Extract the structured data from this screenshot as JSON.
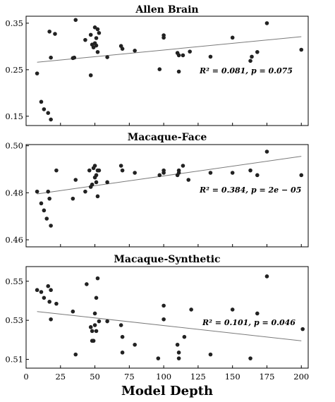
{
  "chart_data": [
    {
      "type": "scatter",
      "title": "Allen Brain",
      "xlim": [
        0,
        205
      ],
      "ylim": [
        0.13,
        0.365
      ],
      "yticks": [
        0.15,
        0.25,
        0.35
      ],
      "ytick_labels": [
        "0.15",
        "0.25",
        "0.35"
      ],
      "x": [
        8,
        11,
        13,
        16,
        17,
        18,
        18,
        21,
        34,
        35,
        36,
        43,
        47,
        47,
        48,
        49,
        50,
        50,
        51,
        51,
        52,
        52,
        53,
        59,
        69,
        70,
        79,
        97,
        100,
        100,
        110,
        111,
        111,
        114,
        119,
        134,
        150,
        163,
        164,
        168,
        175,
        200
      ],
      "y": [
        0.242,
        0.181,
        0.165,
        0.157,
        0.332,
        0.276,
        0.143,
        0.327,
        0.275,
        0.276,
        0.357,
        0.314,
        0.325,
        0.238,
        0.304,
        0.298,
        0.341,
        0.307,
        0.318,
        0.302,
        0.288,
        0.337,
        0.329,
        0.277,
        0.301,
        0.295,
        0.291,
        0.251,
        0.324,
        0.319,
        0.286,
        0.281,
        0.246,
        0.281,
        0.289,
        0.278,
        0.319,
        0.269,
        0.278,
        0.288,
        0.35,
        0.293
      ],
      "fit_line": {
        "x": [
          8,
          200
        ],
        "y": [
          0.266,
          0.321
        ]
      },
      "annotation": "R² = 0.081, p = 0.075"
    },
    {
      "type": "scatter",
      "title": "Macaque-Face",
      "xlim": [
        0,
        205
      ],
      "ylim": [
        0.457,
        0.5005
      ],
      "yticks": [
        0.46,
        0.48,
        0.5
      ],
      "ytick_labels": [
        "0.46",
        "0.48",
        "0.50"
      ],
      "x": [
        8,
        11,
        13,
        15,
        16,
        17,
        18,
        22,
        34,
        36,
        43,
        46,
        47,
        48,
        49,
        50,
        50,
        51,
        51,
        52,
        52,
        53,
        59,
        69,
        70,
        79,
        97,
        100,
        100,
        110,
        111,
        111,
        114,
        118,
        134,
        150,
        163,
        168,
        175,
        200
      ],
      "y": [
        0.4805,
        0.4755,
        0.4725,
        0.469,
        0.4805,
        0.4775,
        0.466,
        0.4895,
        0.4775,
        0.4855,
        0.4805,
        0.4895,
        0.4825,
        0.4835,
        0.4905,
        0.4865,
        0.4915,
        0.4845,
        0.4875,
        0.4895,
        0.4785,
        0.4895,
        0.4845,
        0.4915,
        0.4895,
        0.4885,
        0.4875,
        0.4885,
        0.4895,
        0.4875,
        0.4885,
        0.4895,
        0.4915,
        0.4855,
        0.4885,
        0.4885,
        0.4895,
        0.4875,
        0.4975,
        0.4875
      ],
      "fit_line": {
        "x": [
          8,
          200
        ],
        "y": [
          0.4795,
          0.4955
        ]
      },
      "annotation": "R² = 0.384, p = 2e − 05"
    },
    {
      "type": "scatter",
      "title": "Macaque-Synthetic",
      "xlabel": "Model Depth",
      "xlim": [
        0,
        205
      ],
      "xticks": [
        0,
        25,
        50,
        75,
        100,
        125,
        150,
        175,
        200
      ],
      "xtick_labels": [
        "0",
        "25",
        "50",
        "75",
        "100",
        "125",
        "150",
        "175",
        "200"
      ],
      "ylim": [
        0.5055,
        0.5575
      ],
      "yticks": [
        0.51,
        0.53,
        0.55
      ],
      "ytick_labels": [
        "0.51",
        "0.53",
        "0.55"
      ],
      "x": [
        8,
        11,
        13,
        16,
        17,
        18,
        18,
        22,
        34,
        36,
        44,
        47,
        48,
        48,
        49,
        50,
        50,
        51,
        51,
        52,
        53,
        59,
        69,
        70,
        70,
        79,
        96,
        100,
        100,
        110,
        111,
        111,
        115,
        120,
        134,
        150,
        163,
        168,
        175,
        201
      ],
      "y": [
        0.5455,
        0.5445,
        0.5415,
        0.5475,
        0.5395,
        0.5455,
        0.5305,
        0.5385,
        0.5345,
        0.5125,
        0.5485,
        0.5265,
        0.5195,
        0.5245,
        0.5195,
        0.5335,
        0.5275,
        0.5415,
        0.5245,
        0.5515,
        0.5295,
        0.5295,
        0.5275,
        0.5215,
        0.5135,
        0.5175,
        0.5105,
        0.5375,
        0.5305,
        0.5175,
        0.5135,
        0.5105,
        0.5215,
        0.5355,
        0.5125,
        0.5355,
        0.5105,
        0.5335,
        0.5525,
        0.5255
      ],
      "fit_line": {
        "x": [
          8,
          200
        ],
        "y": [
          0.5345,
          0.5195
        ]
      },
      "annotation": "R² = 0.101, p = 0.046"
    }
  ]
}
